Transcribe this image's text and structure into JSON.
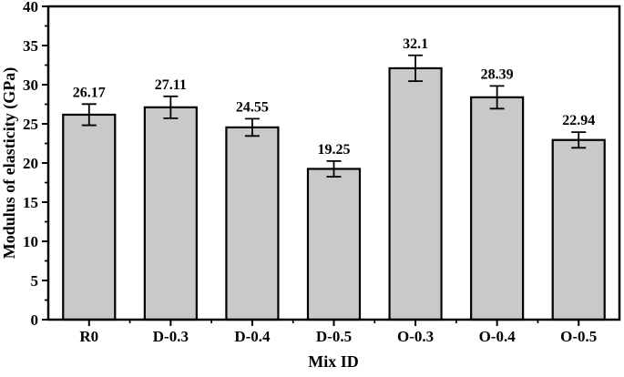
{
  "chart_data": {
    "type": "bar",
    "title": "",
    "xlabel": "Mix ID",
    "ylabel": "Modulus of elasticity (GPa)",
    "categories": [
      "R0",
      "D-0.3",
      "D-0.4",
      "D-0.5",
      "O-0.3",
      "O-0.4",
      "O-0.5"
    ],
    "values": [
      26.17,
      27.11,
      24.55,
      19.25,
      32.1,
      28.39,
      22.94
    ],
    "value_labels": [
      "26.17",
      "27.11",
      "24.55",
      "19.25",
      "32.1",
      "28.39",
      "22.94"
    ],
    "errors": [
      1.35,
      1.4,
      1.1,
      1.0,
      1.65,
      1.45,
      1.0
    ],
    "ylim": [
      0,
      40
    ],
    "ytick_interval": 5,
    "yminor_interval": 2.5,
    "ytick_labels": [
      "0",
      "5",
      "10",
      "15",
      "20",
      "25",
      "30",
      "35",
      "40"
    ],
    "grid": false,
    "legend": null,
    "colors": {
      "bar_fill": "#c9c9c9",
      "bar_stroke": "#000000",
      "frame_stroke": "#000000",
      "background": "#ffffff"
    }
  }
}
